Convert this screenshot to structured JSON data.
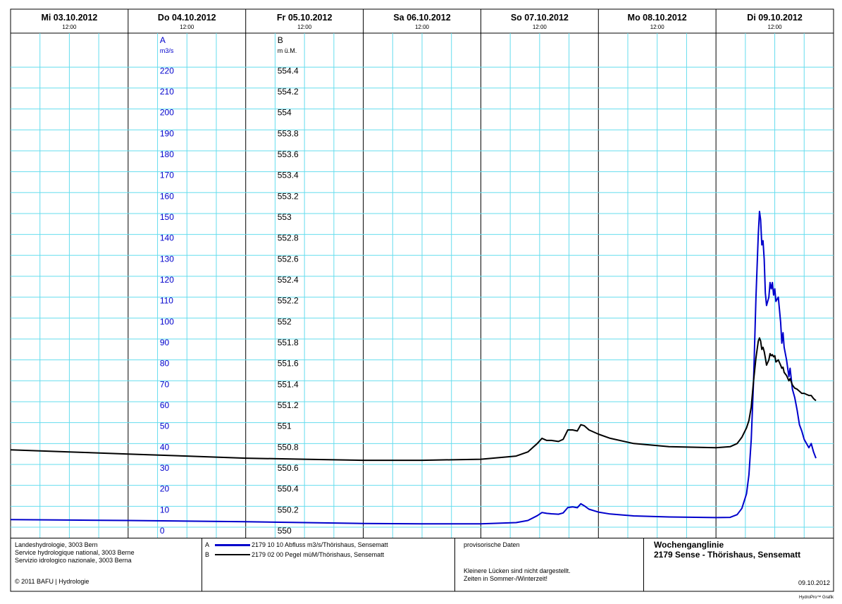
{
  "header": {
    "days": [
      {
        "label": "Mi  03.10.2012",
        "noon": "12:00"
      },
      {
        "label": "Do  04.10.2012",
        "noon": "12:00"
      },
      {
        "label": "Fr  05.10.2012",
        "noon": "12:00"
      },
      {
        "label": "Sa  06.10.2012",
        "noon": "12:00"
      },
      {
        "label": "So  07.10.2012",
        "noon": "12:00"
      },
      {
        "label": "Mo  08.10.2012",
        "noon": "12:00"
      },
      {
        "label": "Di  09.10.2012",
        "noon": "12:00"
      }
    ]
  },
  "footer": {
    "org_lines": [
      "Landeshydrologie, 3003 Bern",
      "Service hydrologique national, 3003 Berne",
      "Servizio idrologico nazionale, 3003 Berna"
    ],
    "copyright": "© 2011 BAFU | Hydrologie",
    "legend": [
      {
        "key": "A",
        "text": "2179 10 10  Abfluss m3/s/Thörishaus, Sensematt",
        "color": "#0000cc"
      },
      {
        "key": "B",
        "text": "2179 02 00  Pegel müM/Thörishaus, Sensematt",
        "color": "#000000"
      }
    ],
    "status": "provisorische Daten",
    "notes": [
      "Kleinere Lücken sind nicht dargestellt.",
      "Zeiten in Sommer-/Winterzeit!"
    ],
    "title_line1": "Wochenganglinie",
    "title_line2": "2179 Sense - Thörishaus, Sensematt",
    "date": "09.10.2012",
    "credit": "HydroPro™ Grafik"
  },
  "chart_data": {
    "type": "line",
    "x_axis": {
      "start": "03.10.2012 00:00",
      "end": "10.10.2012 00:00",
      "grid": true
    },
    "axes": [
      {
        "id": "A",
        "label": "A",
        "unit": "m3/s",
        "ylim": [
          0,
          230
        ],
        "ticks": [
          0,
          10,
          20,
          30,
          40,
          50,
          60,
          70,
          80,
          90,
          100,
          110,
          120,
          130,
          140,
          150,
          160,
          170,
          180,
          190,
          200,
          210,
          220
        ],
        "tick_labels": [
          "0",
          "10",
          "20",
          "30",
          "40",
          "50",
          "60",
          "70",
          "80",
          "90",
          "100",
          "110",
          "120",
          "130",
          "140",
          "150",
          "160",
          "170",
          "180",
          "190",
          "200",
          "210",
          "220"
        ],
        "color": "#0000cc"
      },
      {
        "id": "B",
        "label": "B",
        "unit": "m ü.M.",
        "ylim": [
          550.0,
          554.6
        ],
        "ticks": [
          550.0,
          550.2,
          550.4,
          550.6,
          550.8,
          551.0,
          551.2,
          551.4,
          551.6,
          551.8,
          552.0,
          552.2,
          552.4,
          552.6,
          552.8,
          553.0,
          553.2,
          553.4,
          553.6,
          553.8,
          554.0,
          554.2,
          554.4
        ],
        "tick_labels": [
          "550",
          "550.2",
          "550.4",
          "550.6",
          "550.8",
          "551",
          "551.2",
          "551.4",
          "551.6",
          "551.8",
          "552",
          "552.2",
          "552.4",
          "552.6",
          "552.8",
          "553",
          "553.2",
          "553.4",
          "553.6",
          "553.8",
          "554",
          "554.2",
          "554.4"
        ],
        "color": "#000000"
      }
    ],
    "series": [
      {
        "name": "2179 10 10  Abfluss m3/s/Thörishaus, Sensematt",
        "axis": "A",
        "color": "#0000cc",
        "points": [
          [
            0.0,
            3.6
          ],
          [
            0.5,
            3.4
          ],
          [
            1.0,
            3.2
          ],
          [
            1.5,
            2.9
          ],
          [
            2.0,
            2.6
          ],
          [
            2.5,
            2.2
          ],
          [
            3.0,
            1.8
          ],
          [
            3.5,
            1.6
          ],
          [
            4.0,
            1.6
          ],
          [
            4.3,
            2.2
          ],
          [
            4.4,
            3.2
          ],
          [
            4.48,
            5.5
          ],
          [
            4.52,
            7.0
          ],
          [
            4.56,
            6.6
          ],
          [
            4.6,
            6.4
          ],
          [
            4.66,
            6.2
          ],
          [
            4.7,
            6.8
          ],
          [
            4.74,
            9.4
          ],
          [
            4.78,
            9.7
          ],
          [
            4.82,
            9.3
          ],
          [
            4.85,
            11.2
          ],
          [
            4.88,
            10.2
          ],
          [
            4.92,
            8.6
          ],
          [
            5.0,
            7.2
          ],
          [
            5.1,
            6.3
          ],
          [
            5.3,
            5.4
          ],
          [
            5.6,
            4.9
          ],
          [
            6.0,
            4.6
          ],
          [
            6.12,
            4.7
          ],
          [
            6.18,
            6.0
          ],
          [
            6.22,
            9.0
          ],
          [
            6.26,
            16.0
          ],
          [
            6.28,
            25.0
          ],
          [
            6.3,
            42.0
          ],
          [
            6.32,
            70.0
          ],
          [
            6.34,
            110.0
          ],
          [
            6.36,
            140.0
          ],
          [
            6.37,
            151.0
          ],
          [
            6.38,
            147.0
          ],
          [
            6.39,
            135.0
          ],
          [
            6.4,
            137.0
          ],
          [
            6.41,
            128.0
          ],
          [
            6.42,
            112.0
          ],
          [
            6.43,
            106.0
          ],
          [
            6.45,
            110.0
          ],
          [
            6.46,
            117.0
          ],
          [
            6.47,
            114.0
          ],
          [
            6.48,
            117.0
          ],
          [
            6.49,
            111.0
          ],
          [
            6.5,
            114.0
          ],
          [
            6.51,
            108.0
          ],
          [
            6.53,
            110.0
          ],
          [
            6.55,
            98.0
          ],
          [
            6.56,
            88.0
          ],
          [
            6.57,
            93.0
          ],
          [
            6.58,
            86.0
          ],
          [
            6.6,
            80.0
          ],
          [
            6.62,
            72.0
          ],
          [
            6.63,
            76.0
          ],
          [
            6.65,
            66.0
          ],
          [
            6.67,
            62.0
          ],
          [
            6.69,
            56.0
          ],
          [
            6.71,
            49.0
          ],
          [
            6.73,
            46.0
          ],
          [
            6.75,
            42.0
          ],
          [
            6.77,
            40.0
          ],
          [
            6.79,
            38.0
          ],
          [
            6.81,
            40.0
          ],
          [
            6.83,
            36.0
          ],
          [
            6.85,
            33.0
          ]
        ]
      },
      {
        "name": "2179 02 00  Pegel müM/Thörishaus, Sensematt",
        "axis": "B",
        "color": "#000000",
        "points": [
          [
            0.0,
            550.74
          ],
          [
            0.5,
            550.72
          ],
          [
            1.0,
            550.7
          ],
          [
            1.5,
            550.68
          ],
          [
            2.0,
            550.66
          ],
          [
            2.5,
            550.65
          ],
          [
            3.0,
            550.64
          ],
          [
            3.5,
            550.64
          ],
          [
            4.0,
            550.65
          ],
          [
            4.3,
            550.68
          ],
          [
            4.4,
            550.72
          ],
          [
            4.48,
            550.8
          ],
          [
            4.52,
            550.85
          ],
          [
            4.56,
            550.83
          ],
          [
            4.6,
            550.83
          ],
          [
            4.66,
            550.82
          ],
          [
            4.7,
            550.84
          ],
          [
            4.74,
            550.93
          ],
          [
            4.78,
            550.93
          ],
          [
            4.82,
            550.92
          ],
          [
            4.85,
            550.98
          ],
          [
            4.88,
            550.97
          ],
          [
            4.92,
            550.93
          ],
          [
            5.0,
            550.89
          ],
          [
            5.1,
            550.85
          ],
          [
            5.3,
            550.8
          ],
          [
            5.6,
            550.77
          ],
          [
            6.0,
            550.76
          ],
          [
            6.12,
            550.77
          ],
          [
            6.18,
            550.8
          ],
          [
            6.22,
            550.86
          ],
          [
            6.26,
            550.95
          ],
          [
            6.28,
            551.02
          ],
          [
            6.3,
            551.15
          ],
          [
            6.32,
            551.4
          ],
          [
            6.34,
            551.62
          ],
          [
            6.36,
            551.78
          ],
          [
            6.37,
            551.81
          ],
          [
            6.38,
            551.78
          ],
          [
            6.39,
            551.7
          ],
          [
            6.4,
            551.72
          ],
          [
            6.41,
            551.68
          ],
          [
            6.42,
            551.62
          ],
          [
            6.43,
            551.55
          ],
          [
            6.45,
            551.6
          ],
          [
            6.46,
            551.66
          ],
          [
            6.47,
            551.64
          ],
          [
            6.48,
            551.65
          ],
          [
            6.49,
            551.63
          ],
          [
            6.5,
            551.64
          ],
          [
            6.51,
            551.58
          ],
          [
            6.53,
            551.6
          ],
          [
            6.55,
            551.55
          ],
          [
            6.56,
            551.52
          ],
          [
            6.57,
            551.53
          ],
          [
            6.58,
            551.48
          ],
          [
            6.6,
            551.45
          ],
          [
            6.62,
            551.4
          ],
          [
            6.63,
            551.42
          ],
          [
            6.65,
            551.36
          ],
          [
            6.67,
            551.33
          ],
          [
            6.69,
            551.32
          ],
          [
            6.71,
            551.3
          ],
          [
            6.73,
            551.28
          ],
          [
            6.75,
            551.28
          ],
          [
            6.77,
            551.27
          ],
          [
            6.79,
            551.26
          ],
          [
            6.81,
            551.26
          ],
          [
            6.83,
            551.23
          ],
          [
            6.85,
            551.21
          ]
        ]
      }
    ]
  }
}
